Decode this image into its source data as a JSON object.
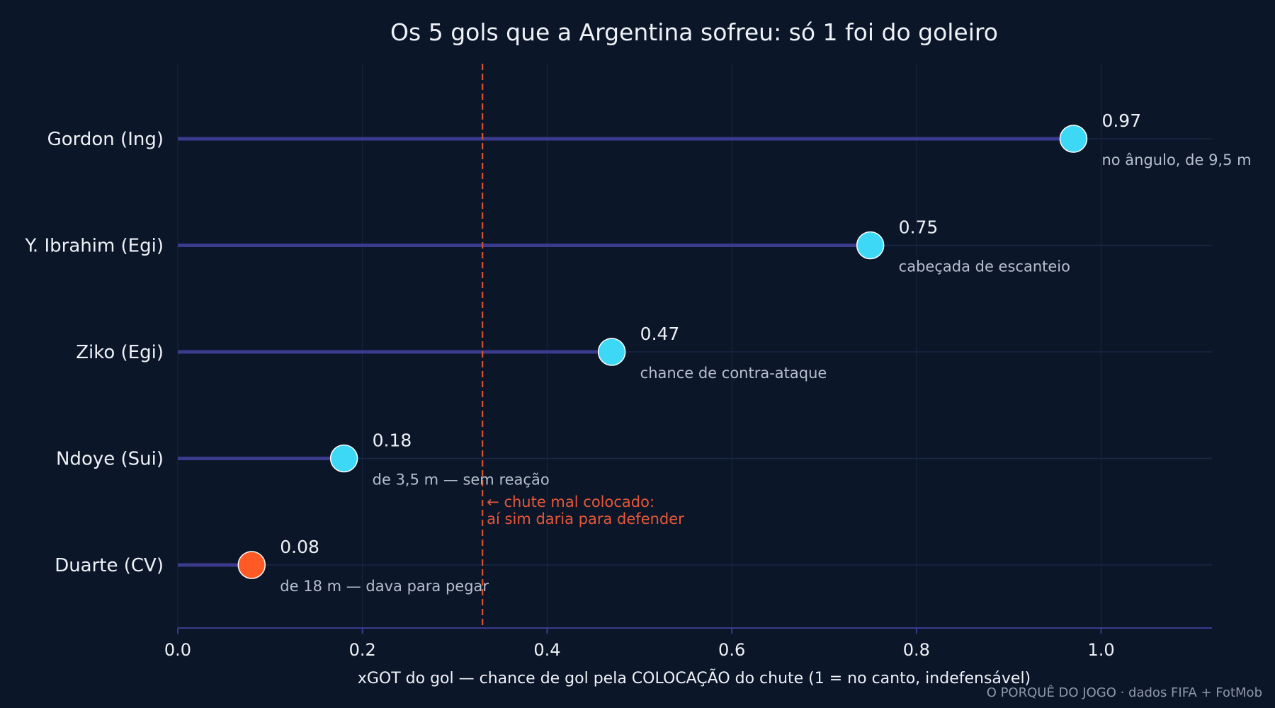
{
  "chart_data": {
    "type": "lollipop",
    "title": "Os 5 gols que a Argentina sofreu: só 1 foi do goleiro",
    "xlabel": "xGOT do gol — chance de gol pela COLOCAÇÃO do chute (1 = no canto, indefensável)",
    "xlim": [
      0,
      1.12
    ],
    "xticks": [
      0.0,
      0.2,
      0.4,
      0.6,
      0.8,
      1.0
    ],
    "xtick_labels": [
      "0.0",
      "0.2",
      "0.4",
      "0.6",
      "0.8",
      "1.0"
    ],
    "grid": true,
    "items": [
      {
        "label": "Gordon (Ing)",
        "value": 0.97,
        "value_label": "0.97",
        "note": "no ângulo, de 9,5 m",
        "color": "#3dd8f5"
      },
      {
        "label": "Y. Ibrahim (Egi)",
        "value": 0.75,
        "value_label": "0.75",
        "note": "cabeçada de escanteio",
        "color": "#3dd8f5"
      },
      {
        "label": "Ziko (Egi)",
        "value": 0.47,
        "value_label": "0.47",
        "note": "chance de contra-ataque",
        "color": "#3dd8f5"
      },
      {
        "label": "Ndoye (Sui)",
        "value": 0.18,
        "value_label": "0.18",
        "note": "de 3,5 m — sem reação",
        "color": "#3dd8f5"
      },
      {
        "label": "Duarte (CV)",
        "value": 0.08,
        "value_label": "0.08",
        "note": "de 18 m — dava para pegar",
        "color": "#ff5a26"
      }
    ],
    "reference_line": {
      "x": 0.33,
      "color": "#d9542f",
      "annotation_lines": [
        "← chute mal colocado:",
        "aí sim daria para defender"
      ]
    },
    "stem_color": "#3b3a8c",
    "source": "O PORQUÊ DO JOGO · dados FIFA + FotMob"
  }
}
